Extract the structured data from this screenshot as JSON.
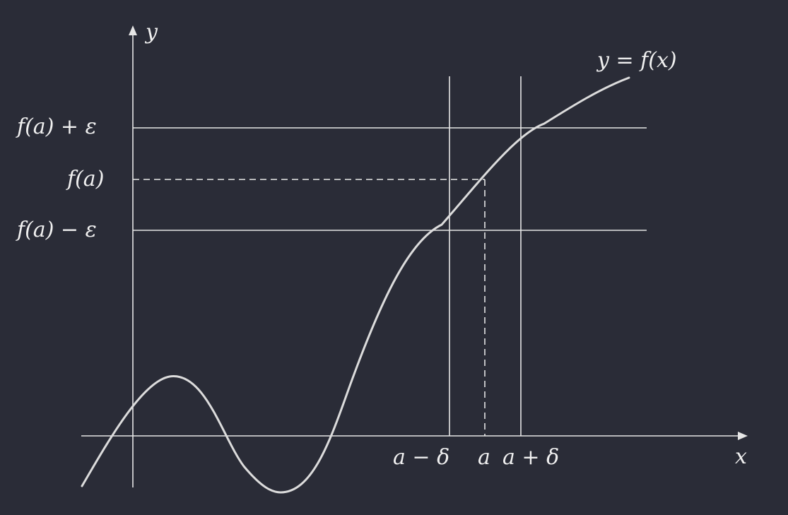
{
  "colors": {
    "background": "#2a2c37",
    "ink": "#e6e6e6"
  },
  "labels": {
    "y_axis": "y",
    "x_axis": "x",
    "curve": "y = f(x)",
    "upper": "f(a) + ε",
    "fa": "f(a)",
    "lower": "f(a) − ε",
    "a_minus_delta": "a − δ",
    "a": "a",
    "a_plus_delta": "a + δ"
  }
}
